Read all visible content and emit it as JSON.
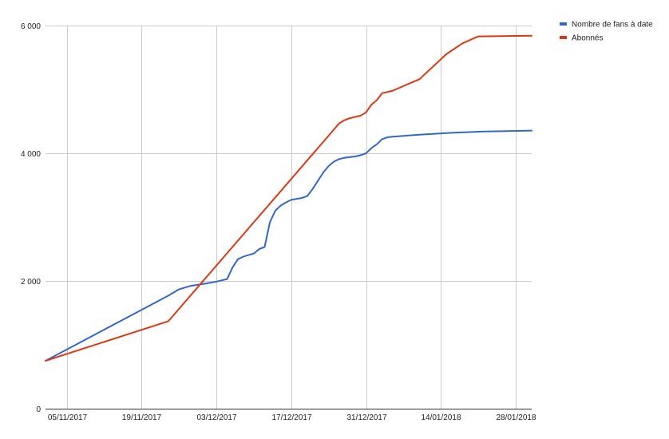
{
  "chart_data": {
    "type": "line",
    "x_kind": "date",
    "x_tick_labels": [
      "05/11/2017",
      "19/11/2017",
      "03/12/2017",
      "17/12/2017",
      "31/12/2017",
      "14/01/2018",
      "28/01/2018"
    ],
    "xlim": [
      "2017-11-01",
      "2018-01-31"
    ],
    "y_tick_labels": [
      "0",
      "2 000",
      "4 000",
      "6 000"
    ],
    "ylim": [
      0,
      6000
    ],
    "grid": true,
    "legend_position": "top-right",
    "series": [
      {
        "name": "Nombre de fans à date",
        "color": "#3366cc",
        "points": [
          [
            "2017-11-01",
            750
          ],
          [
            "2017-11-24",
            1770
          ],
          [
            "2017-11-26",
            1870
          ],
          [
            "2017-11-28",
            1920
          ],
          [
            "2017-12-01",
            1960
          ],
          [
            "2017-12-03",
            1990
          ],
          [
            "2017-12-05",
            2030
          ],
          [
            "2017-12-06",
            2210
          ],
          [
            "2017-12-07",
            2340
          ],
          [
            "2017-12-08",
            2380
          ],
          [
            "2017-12-10",
            2430
          ],
          [
            "2017-12-11",
            2500
          ],
          [
            "2017-12-12",
            2530
          ],
          [
            "2017-12-13",
            2920
          ],
          [
            "2017-12-14",
            3100
          ],
          [
            "2017-12-15",
            3180
          ],
          [
            "2017-12-16",
            3230
          ],
          [
            "2017-12-17",
            3270
          ],
          [
            "2017-12-19",
            3300
          ],
          [
            "2017-12-20",
            3330
          ],
          [
            "2017-12-21",
            3440
          ],
          [
            "2017-12-23",
            3700
          ],
          [
            "2017-12-24",
            3800
          ],
          [
            "2017-12-25",
            3870
          ],
          [
            "2017-12-26",
            3910
          ],
          [
            "2017-12-27",
            3930
          ],
          [
            "2017-12-29",
            3950
          ],
          [
            "2017-12-30",
            3970
          ],
          [
            "2017-12-31",
            4000
          ],
          [
            "2018-01-01",
            4080
          ],
          [
            "2018-01-02",
            4140
          ],
          [
            "2018-01-03",
            4220
          ],
          [
            "2018-01-04",
            4250
          ],
          [
            "2018-01-05",
            4260
          ],
          [
            "2018-01-10",
            4290
          ],
          [
            "2018-01-16",
            4320
          ],
          [
            "2018-01-22",
            4340
          ],
          [
            "2018-01-31",
            4355
          ]
        ]
      },
      {
        "name": "Abonnés",
        "color": "#dc3912",
        "points": [
          [
            "2017-11-01",
            750
          ],
          [
            "2017-11-24",
            1370
          ],
          [
            "2017-12-26",
            4470
          ],
          [
            "2017-12-27",
            4520
          ],
          [
            "2017-12-28",
            4550
          ],
          [
            "2017-12-29",
            4570
          ],
          [
            "2017-12-30",
            4590
          ],
          [
            "2017-12-31",
            4640
          ],
          [
            "2018-01-01",
            4760
          ],
          [
            "2018-01-02",
            4830
          ],
          [
            "2018-01-03",
            4940
          ],
          [
            "2018-01-05",
            4980
          ],
          [
            "2018-01-10",
            5160
          ],
          [
            "2018-01-15",
            5550
          ],
          [
            "2018-01-18",
            5720
          ],
          [
            "2018-01-21",
            5830
          ],
          [
            "2018-01-31",
            5840
          ]
        ]
      }
    ]
  }
}
